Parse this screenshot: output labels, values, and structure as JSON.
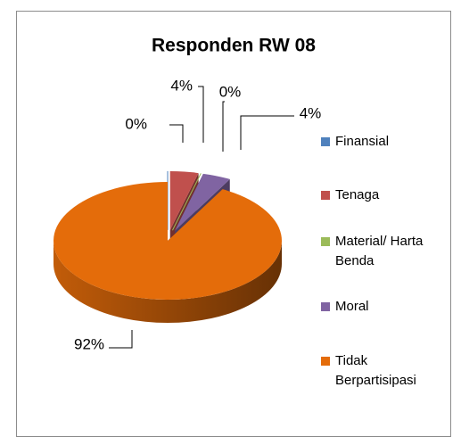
{
  "chart_data": {
    "type": "pie3d",
    "title": "Responden RW 08",
    "categories": [
      "Finansial",
      "Tenaga",
      "Material/ Harta Benda",
      "Moral",
      "Tidak Berpartisipasi"
    ],
    "values": [
      0,
      4,
      0,
      4,
      92
    ],
    "value_labels": [
      "0%",
      "4%",
      "0%",
      "4%",
      "92%"
    ],
    "colors": [
      "#4f81bd",
      "#c0504d",
      "#9bbb59",
      "#8064a2",
      "#e46c0a"
    ],
    "legend": "right"
  }
}
